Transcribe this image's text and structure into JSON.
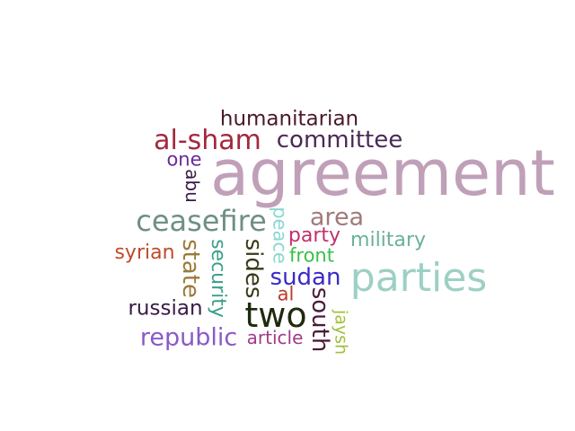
{
  "words": [
    {
      "text": "agreement",
      "color": "#c0a0b8"
    },
    {
      "text": "parties",
      "color": "#9dd0c5"
    },
    {
      "text": "two",
      "color": "#1e2a0e"
    },
    {
      "text": "ceasefire",
      "color": "#6f8f86"
    },
    {
      "text": "al-sham",
      "color": "#a3283e"
    },
    {
      "text": "committee",
      "color": "#4a2a55"
    },
    {
      "text": "humanitarian",
      "color": "#4a1a2a"
    },
    {
      "text": "area",
      "color": "#a07a7a"
    },
    {
      "text": "republic",
      "color": "#8a5ac8"
    },
    {
      "text": "sudan",
      "color": "#3a2ac8"
    },
    {
      "text": "state",
      "color": "#9a7a3a"
    },
    {
      "text": "sides",
      "color": "#3a3a1a"
    },
    {
      "text": "south",
      "color": "#4a1a3a"
    },
    {
      "text": "military",
      "color": "#6ab09a"
    },
    {
      "text": "party",
      "color": "#c0306a"
    },
    {
      "text": "security",
      "color": "#3aa08a"
    },
    {
      "text": "russian",
      "color": "#3a1a4a"
    },
    {
      "text": "syrian",
      "color": "#c04a2a"
    },
    {
      "text": "peace",
      "color": "#8ad8d0"
    },
    {
      "text": "one",
      "color": "#6a2a9a"
    },
    {
      "text": "abu",
      "color": "#3a1a4a"
    },
    {
      "text": "front",
      "color": "#3ac04a"
    },
    {
      "text": "article",
      "color": "#a03a8a"
    },
    {
      "text": "al",
      "color": "#c03a2a"
    },
    {
      "text": "jaysh",
      "color": "#a0c03a"
    }
  ]
}
